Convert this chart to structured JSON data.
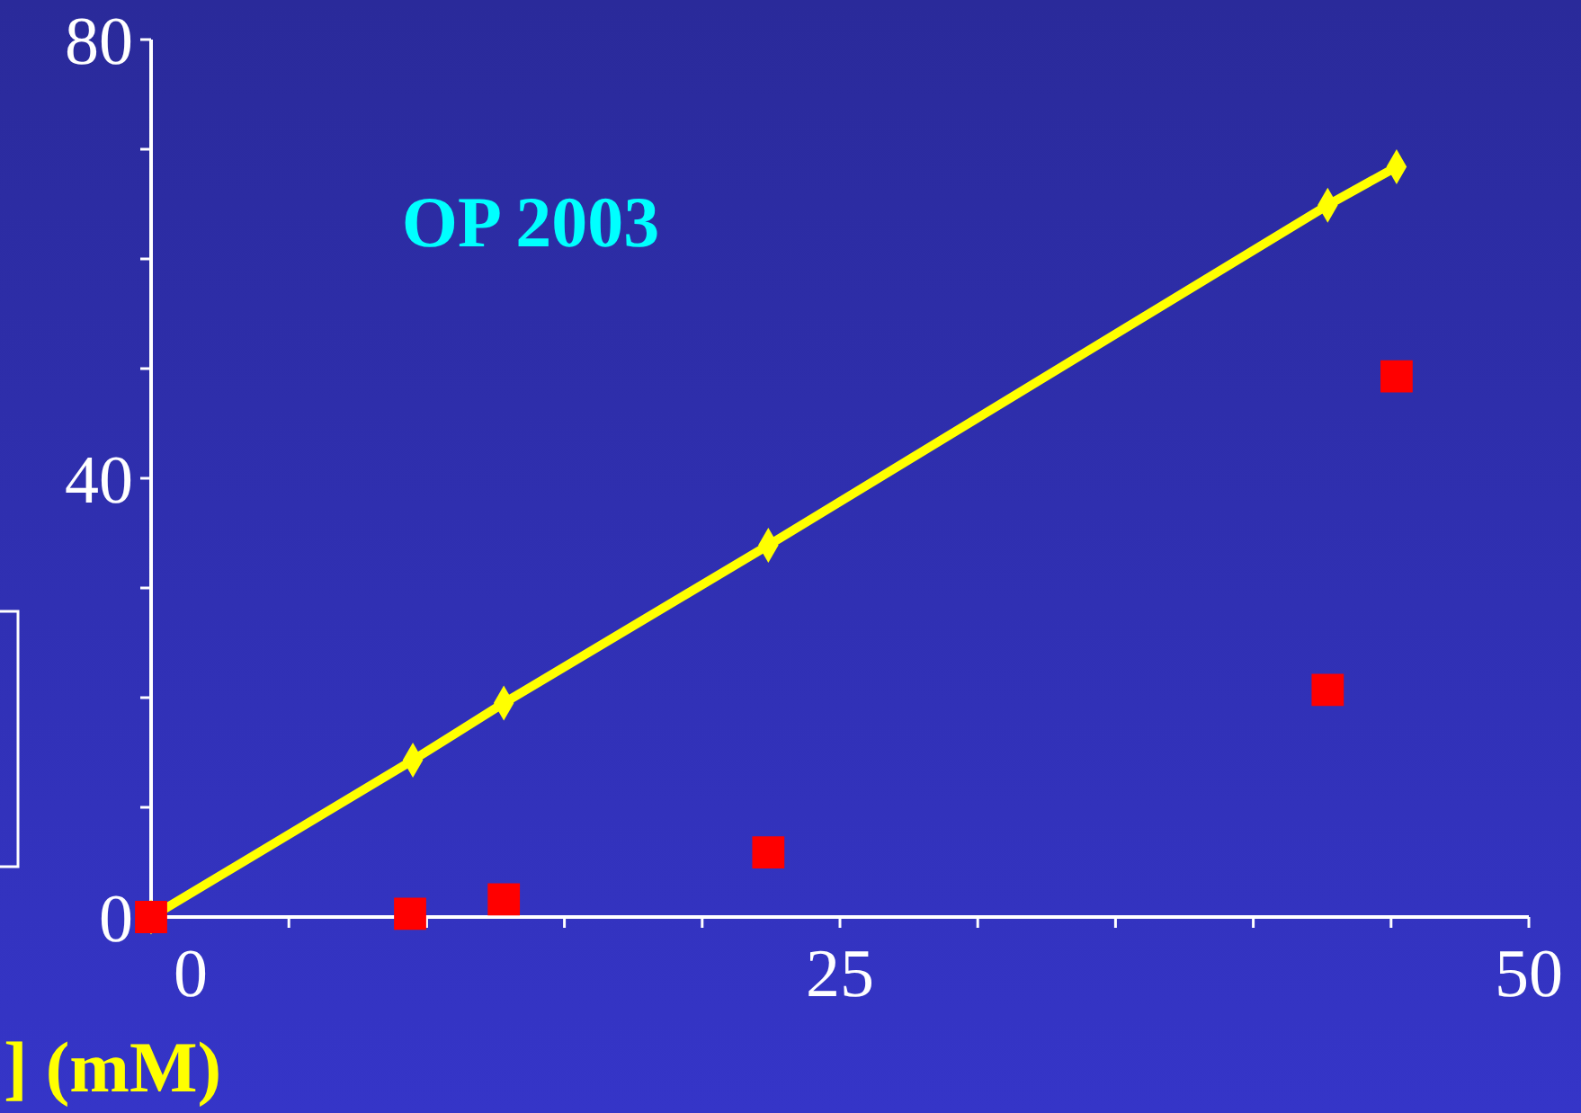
{
  "chart_data": {
    "type": "scatter",
    "xlabel": "] (mM)",
    "annotations": [
      "OP 2003"
    ],
    "xlim": [
      0,
      50
    ],
    "ylim": [
      0,
      80
    ],
    "xticks": [
      0,
      {
        "value": 5,
        "label": null
      },
      {
        "value": 10,
        "label": null
      },
      {
        "value": 15,
        "label": null
      },
      {
        "value": 20,
        "label": null
      },
      25,
      {
        "value": 30,
        "label": null
      },
      {
        "value": 35,
        "label": null
      },
      {
        "value": 40,
        "label": null
      },
      {
        "value": 45,
        "label": null
      },
      50
    ],
    "yticks": [
      0,
      {
        "value": 10,
        "label": null
      },
      {
        "value": 20,
        "label": null
      },
      {
        "value": 30,
        "label": null
      },
      40,
      {
        "value": 50,
        "label": null
      },
      {
        "value": 60,
        "label": null
      },
      {
        "value": 70,
        "label": null
      },
      80
    ],
    "grid": false,
    "series": [
      {
        "type": "line",
        "color": "#ffff00",
        "marker": "diamond",
        "line_style": "solid",
        "x": [
          0,
          9.5,
          12.8,
          22.4,
          42.7,
          45.2
        ],
        "values": [
          0,
          14.3,
          19.5,
          33.9,
          64.9,
          68.4
        ]
      },
      {
        "type": "scatter",
        "color": "#ff0000",
        "marker": "square",
        "x": [
          0,
          9.4,
          12.8,
          22.4,
          42.7,
          45.2
        ],
        "values": [
          0,
          0.3,
          1.6,
          5.9,
          20.7,
          49.3
        ]
      }
    ]
  }
}
